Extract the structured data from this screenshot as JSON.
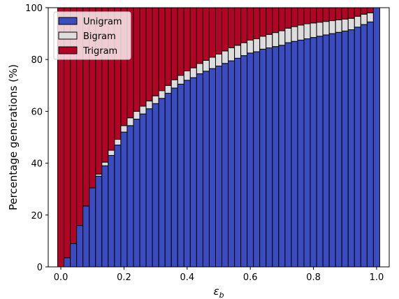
{
  "chart_data": {
    "type": "bar",
    "stacked": true,
    "title": "",
    "xlabel": "ε_b",
    "xlabel_main": "ε",
    "xlabel_sub": "b",
    "ylabel": "Percentage generations (%)",
    "xlim": [
      -0.04,
      1.04
    ],
    "ylim": [
      0,
      100
    ],
    "xticks": [
      0.0,
      0.2,
      0.4,
      0.6,
      0.8,
      1.0
    ],
    "xtick_labels": [
      "0.0",
      "0.2",
      "0.4",
      "0.6",
      "0.8",
      "1.0"
    ],
    "yticks": [
      0,
      20,
      40,
      60,
      80,
      100
    ],
    "ytick_labels": [
      "0",
      "20",
      "40",
      "60",
      "80",
      "100"
    ],
    "bar_width": 0.02,
    "legend_position": "top-left",
    "x": [
      0.0,
      0.02,
      0.04,
      0.06,
      0.08,
      0.1,
      0.12,
      0.14,
      0.16,
      0.18,
      0.2,
      0.22,
      0.24,
      0.26,
      0.28,
      0.3,
      0.32,
      0.34,
      0.36,
      0.38,
      0.4,
      0.42,
      0.44,
      0.46,
      0.48,
      0.5,
      0.52,
      0.54,
      0.56,
      0.58,
      0.6,
      0.62,
      0.64,
      0.66,
      0.68,
      0.7,
      0.72,
      0.74,
      0.76,
      0.78,
      0.8,
      0.82,
      0.84,
      0.86,
      0.88,
      0.9,
      0.92,
      0.94,
      0.96,
      0.98,
      1.0
    ],
    "series": [
      {
        "name": "Unigram",
        "color": "#3b4cc0",
        "values": [
          0,
          3.5,
          9,
          16,
          23.5,
          30.5,
          35,
          39,
          43,
          47,
          52,
          54.5,
          57,
          59,
          61,
          63,
          65,
          67,
          69,
          70.5,
          72,
          73,
          74.5,
          75.5,
          76.5,
          77.5,
          78.5,
          79.5,
          80.5,
          81.5,
          82.5,
          83,
          84,
          84.5,
          85,
          85.5,
          86.5,
          87,
          87.5,
          88,
          88.5,
          89,
          89.5,
          90,
          90.5,
          91,
          91.5,
          92.5,
          93.5,
          94.5,
          100
        ]
      },
      {
        "name": "Bigram",
        "color": "#dddddd",
        "values": [
          0,
          0,
          0,
          0,
          0,
          0,
          0.8,
          1.4,
          2.0,
          2.2,
          2.5,
          3.0,
          3.0,
          3.0,
          3.0,
          3.0,
          3.0,
          3.0,
          3.2,
          3.4,
          3.6,
          3.8,
          4.0,
          4.2,
          4.4,
          4.6,
          4.8,
          5.0,
          5.0,
          5.0,
          5.0,
          5.0,
          5.0,
          5.2,
          5.4,
          5.6,
          5.6,
          5.7,
          5.8,
          5.8,
          5.6,
          5.4,
          5.2,
          5.0,
          4.8,
          4.6,
          4.4,
          4.2,
          4.0,
          3.5,
          0
        ]
      },
      {
        "name": "Trigram",
        "color": "#b40426",
        "values": [
          100,
          96.5,
          91,
          84,
          76.5,
          69.5,
          64.2,
          59.6,
          55,
          50.8,
          45.5,
          42.5,
          40,
          38,
          36,
          34,
          32,
          30,
          27.8,
          26.1,
          24.4,
          23.2,
          21.5,
          20.3,
          19.1,
          17.9,
          16.7,
          15.5,
          14.5,
          13.5,
          12.5,
          12,
          11,
          10.3,
          9.6,
          8.9,
          7.9,
          7.3,
          6.7,
          6.2,
          5.9,
          5.6,
          5.3,
          5,
          4.7,
          4.4,
          4.1,
          3.3,
          2.5,
          2,
          0
        ]
      }
    ]
  }
}
